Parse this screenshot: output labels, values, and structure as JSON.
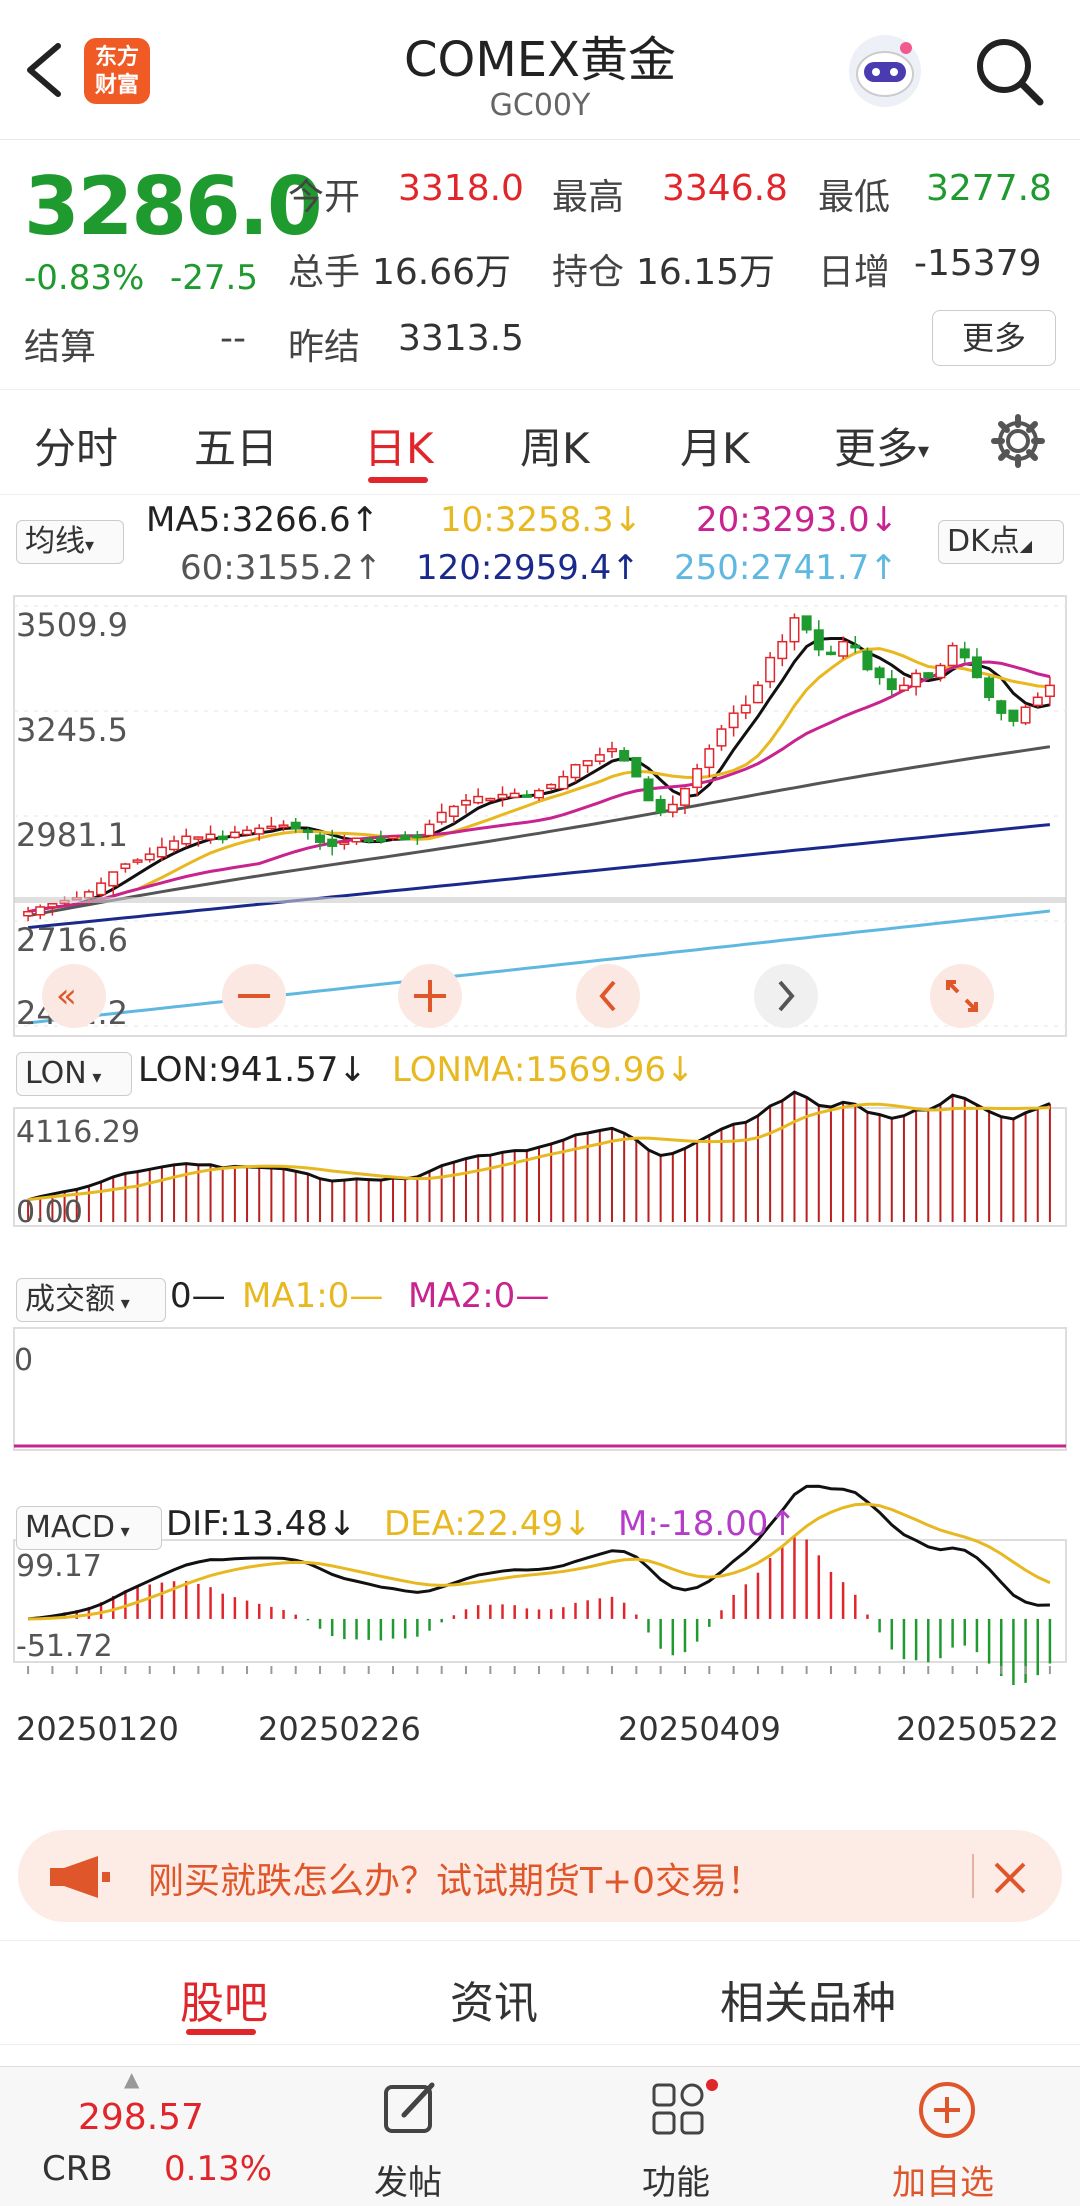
{
  "header": {
    "title": "COMEX黄金",
    "code": "GC00Y",
    "logo_text_1": "东方",
    "logo_text_2": "财富"
  },
  "quote": {
    "price": "3286.0",
    "change_pct": "-0.83%",
    "change": "-27.5",
    "settle_label": "结算",
    "settle_value": "--",
    "open_label": "今开",
    "open_value": "3318.0",
    "high_label": "最高",
    "high_value": "3346.8",
    "low_label": "最低",
    "low_value": "3277.8",
    "volume_label": "总手",
    "volume_value": "16.66万",
    "oi_label": "持仓",
    "oi_value": "16.15万",
    "daily_inc_label": "日增",
    "daily_inc_value": "-15379",
    "prev_settle_label": "昨结",
    "prev_settle_value": "3313.5",
    "more_label": "更多"
  },
  "tabs": [
    {
      "label": "分时"
    },
    {
      "label": "五日"
    },
    {
      "label": "日K"
    },
    {
      "label": "周K"
    },
    {
      "label": "月K"
    },
    {
      "label": "更多"
    }
  ],
  "ma_row": {
    "selector": "均线",
    "ma5": "MA5:3266.6↑",
    "ma10": "10:3258.3↓",
    "ma20": "20:3293.0↓",
    "ma60": "60:3155.2↑",
    "ma120": "120:2959.4↑",
    "ma250": "250:2741.7↑",
    "dk_label": "DK点"
  },
  "lon_row": {
    "selector": "LON",
    "lon": "LON:941.57↓",
    "lonma": "LONMA:1569.96↓"
  },
  "vol_row": {
    "selector": "成交额",
    "zero": "0—",
    "ma1": "MA1:0—",
    "ma2": "MA2:0—"
  },
  "macd_row": {
    "selector": "MACD",
    "dif": "DIF:13.48↓",
    "dea": "DEA:22.49↓",
    "m": "M:-18.00↑"
  },
  "axis": {
    "price_ticks": [
      "3509.9",
      "3245.5",
      "2981.1",
      "2716.6",
      "2452.2"
    ],
    "lon_ticks": [
      "4116.29",
      "0.00"
    ],
    "vol_ticks": [
      "0"
    ],
    "macd_ticks": [
      "99.17",
      "-51.72"
    ],
    "dates": [
      "20250120",
      "20250226",
      "20250409",
      "20250522"
    ]
  },
  "colors": {
    "up": "#e0262b",
    "down": "#1f9a2f",
    "ma5": "#111111",
    "ma10": "#e8b820",
    "ma20": "#c8238f",
    "ma60": "#555555",
    "ma120": "#1a2a8c",
    "ma250": "#5fb8e0",
    "macd_dea": "#e8b820",
    "macd_m": "#b43cc8"
  },
  "chart_data": {
    "type": "candlestick",
    "x_start": "20250120",
    "x_end": "20250522",
    "price_ylim": [
      2452.2,
      3509.9
    ],
    "closes": [
      2740,
      2752,
      2760,
      2768,
      2775,
      2790,
      2812,
      2840,
      2860,
      2870,
      2885,
      2902,
      2918,
      2930,
      2928,
      2935,
      2922,
      2940,
      2945,
      2950,
      2955,
      2958,
      2950,
      2940,
      2915,
      2905,
      2915,
      2925,
      2922,
      2918,
      2930,
      2922,
      2930,
      2960,
      2990,
      3005,
      3020,
      3030,
      3025,
      3035,
      3038,
      3030,
      3045,
      3060,
      3080,
      3110,
      3120,
      3135,
      3150,
      3120,
      3080,
      3020,
      2990,
      3010,
      3050,
      3100,
      3150,
      3200,
      3240,
      3260,
      3310,
      3380,
      3420,
      3480,
      3450,
      3400,
      3390,
      3420,
      3405,
      3350,
      3330,
      3300,
      3310,
      3340,
      3330,
      3360,
      3410,
      3380,
      3330,
      3280,
      3240,
      3220,
      3255,
      3280,
      3310
    ],
    "ma_lines": {
      "MA5": 3266.6,
      "MA10": 3258.3,
      "MA20": 3293.0,
      "MA60": 3155.2,
      "MA120": 2959.4,
      "MA250": 2741.7
    },
    "lon_ylim": [
      0.0,
      4116.29
    ],
    "macd_ylim": [
      -51.72,
      99.17
    ]
  },
  "promo": {
    "text": "刚买就跌怎么办？试试期货T+0交易！"
  },
  "subtabs": [
    {
      "label": "股吧"
    },
    {
      "label": "资讯"
    },
    {
      "label": "相关品种"
    }
  ],
  "bottom": {
    "crb_value": "298.57",
    "crb_label": "CRB",
    "crb_change": "0.13%",
    "post_label": "发帖",
    "func_label": "功能",
    "add_label": "加自选"
  }
}
